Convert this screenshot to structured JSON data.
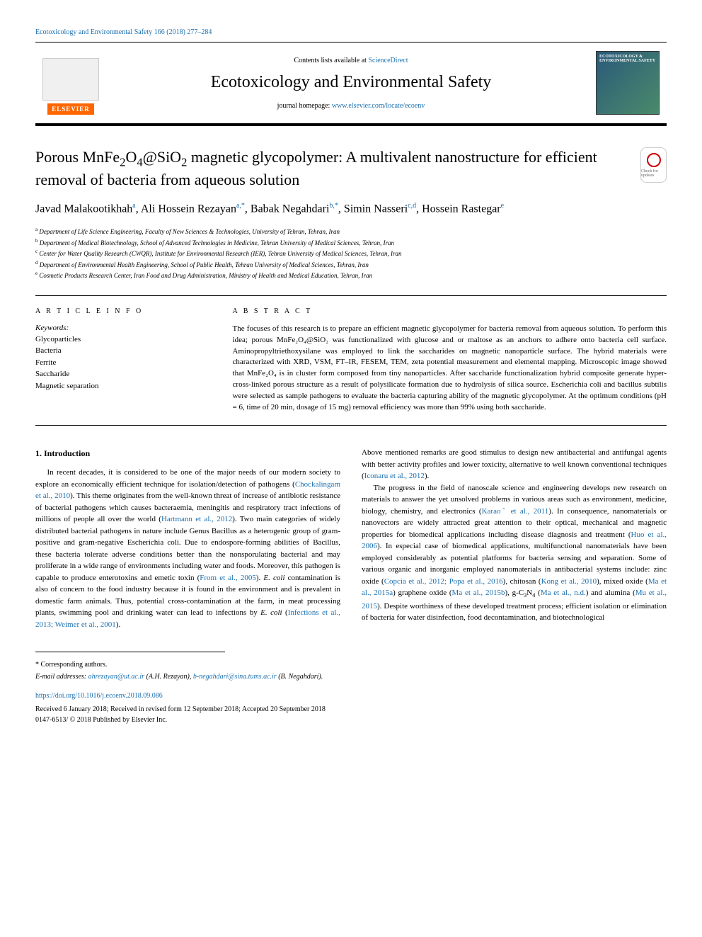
{
  "header": {
    "citation_link": "Ecotoxicology and Environmental Safety 166 (2018) 277–284",
    "contents_available": "Contents lists available at ",
    "sciencedirect": "ScienceDirect",
    "journal_title": "Ecotoxicology and Environmental Safety",
    "homepage_label": "journal homepage: ",
    "homepage_url": "www.elsevier.com/locate/ecoenv",
    "elsevier_label": "ELSEVIER",
    "cover_label": "ECOTOXICOLOGY & ENVIRONMENTAL SAFETY",
    "check_updates": "Check for updates"
  },
  "article": {
    "title_prefix": "Porous MnFe",
    "title_sub1": "2",
    "title_mid1": "O",
    "title_sub2": "4",
    "title_mid2": "@SiO",
    "title_sub3": "2",
    "title_suffix": " magnetic glycopolymer: A multivalent nanostructure for efficient removal of bacteria from aqueous solution",
    "authors": [
      {
        "name": "Javad Malakootikhah",
        "sup": "a"
      },
      {
        "name": "Ali Hossein Rezayan",
        "sup": "a,*"
      },
      {
        "name": "Babak Negahdari",
        "sup": "b,*"
      },
      {
        "name": "Simin Nasseri",
        "sup": "c,d"
      },
      {
        "name": "Hossein Rastegar",
        "sup": "e"
      }
    ],
    "affiliations": [
      {
        "sup": "a",
        "text": "Department of Life Science Engineering, Faculty of New Sciences & Technologies, University of Tehran, Tehran, Iran"
      },
      {
        "sup": "b",
        "text": "Department of Medical Biotechnology, School of Advanced Technologies in Medicine, Tehran University of Medical Sciences, Tehran, Iran"
      },
      {
        "sup": "c",
        "text": "Center for Water Quality Research (CWQR), Institute for Environmental Research (IER), Tehran University of Medical Sciences, Tehran, Iran"
      },
      {
        "sup": "d",
        "text": "Department of Environmental Health Engineering, School of Public Health, Tehran University of Medical Sciences, Tehran, Iran"
      },
      {
        "sup": "e",
        "text": "Cosmetic Products Research Center, Iran Food and Drug Administration, Ministry of Health and Medical Education, Tehran, Iran"
      }
    ]
  },
  "meta": {
    "article_info_label": "A R T I C L E  I N F O",
    "abstract_label": "A B S T R A C T",
    "keywords_label": "Keywords:",
    "keywords": [
      "Glycoparticles",
      "Bacteria",
      "Ferrite",
      "Saccharide",
      "Magnetic separation"
    ],
    "abstract_text": "The focuses of this research is to prepare an efficient magnetic glycopolymer for bacteria removal from aqueous solution. To perform this idea; porous MnFe₂O₄@SiO₂ was functionalized with glucose and or maltose as an anchors to adhere onto bacteria cell surface. Aminopropyltriethoxysilane was employed to link the saccharides on magnetic nanoparticle surface. The hybrid materials were characterized with XRD, VSM, FT–IR, FESEM, TEM, zeta potential measurement and elemental mapping. Microscopic image showed that MnFe₂O₄ is in cluster form composed from tiny nanoparticles. After saccharide functionalization hybrid composite generate hyper-cross-linked porous structure as a result of polysilicate formation due to hydrolysis of silica source. Escherichia coli and bacillus subtilis were selected as sample pathogens to evaluate the bacteria capturing ability of the magnetic glycopolymer. At the optimum conditions (pH = 6, time of 20 min, dosage of 15 mg) removal efficiency was more than 99% using both saccharide."
  },
  "body": {
    "intro_heading": "1. Introduction",
    "col1_p1_a": "In recent decades, it is considered to be one of the major needs of our modern society to explore an economically efficient technique for isolation/detection of pathogens (",
    "col1_ref1": "Chockalingam et al., 2010",
    "col1_p1_b": "). This theme originates from the well-known threat of increase of antibiotic resistance of bacterial pathogens which causes bacteraemia, meningitis and respiratory tract infections of millions of people all over the world (",
    "col1_ref2": "Hartmann et al., 2012",
    "col1_p1_c": "). Two main categories of widely distributed bacterial pathogens in nature include Genus Bacillus as a heterogenic group of gram-positive and gram-negative Escherichia coli. Due to endospore-forming abilities of Bacillus, these bacteria tolerate adverse conditions better than the nonsporulating bacterial and may proliferate in a wide range of environments including water and foods. Moreover, this pathogen is capable to produce enterotoxins and emetic toxin (",
    "col1_ref3": "From et al., 2005",
    "col1_p1_d": "). ",
    "col1_ecoli": "E. coli",
    "col1_p1_e": " contamination is also of concern to the food industry because it is found in the environment and is prevalent in domestic farm animals. Thus, potential cross-contamination at the farm, in meat processing plants, swimming pool and drinking water can lead to infections by ",
    "col1_p1_f": " (",
    "col1_ref4": "Infections et al., 2013; Weimer et al., 2001",
    "col1_p1_g": ").",
    "col2_p1_a": "Above mentioned remarks are good stimulus to design new antibacterial and antifungal agents with better activity profiles and lower toxicity, alternative to well known conventional techniques (",
    "col2_ref1": "Iconaru et al., 2012",
    "col2_p1_b": ").",
    "col2_p2_a": "The progress in the field of nanoscale science and engineering develops new research on materials to answer the yet unsolved problems in various areas such as environment, medicine, biology, chemistry, and electronics (",
    "col2_ref2": "Karaoˇ et al., 2011",
    "col2_p2_b": "). In consequence, nanomaterials or nanovectors are widely attracted great attention to their optical, mechanical and magnetic properties for biomedical applications including disease diagnosis and treatment (",
    "col2_ref3": "Huo et al., 2006",
    "col2_p2_c": "). In especial case of biomedical applications, multifunctional nanomaterials have been employed considerably as potential platforms for bacteria sensing and separation. Some of various organic and inorganic employed nanomaterials in antibacterial systems include: zinc oxide (",
    "col2_ref4": "Copcia et al., 2012; Popa et al., 2016",
    "col2_p2_d": "), chitosan (",
    "col2_ref5": "Kong et al., 2010",
    "col2_p2_e": "), mixed oxide (",
    "col2_ref6": "Ma et al., 2015a",
    "col2_p2_f": ") graphene oxide (",
    "col2_ref7": "Ma et al., 2015b",
    "col2_p2_g": "), g-C",
    "col2_sub1": "3",
    "col2_p2_h": "N",
    "col2_sub2": "4",
    "col2_p2_i": " (",
    "col2_ref8": "Ma et al., n.d.",
    "col2_p2_j": ") and alumina (",
    "col2_ref9": "Mu et al., 2015",
    "col2_p2_k": "). Despite worthiness of these developed treatment process; efficient isolation or elimination of bacteria for water disinfection, food decontamination, and biotechnological"
  },
  "footer": {
    "corresponding_note": "* Corresponding authors.",
    "email_label": "E-mail addresses: ",
    "email1": "ahrezayan@ut.ac.ir",
    "email1_name": " (A.H. Rezayan), ",
    "email2": "b-negahdari@sina.tums.ac.ir",
    "email2_name": " (B. Negahdari).",
    "doi": "https://doi.org/10.1016/j.ecoenv.2018.09.086",
    "received": "Received 6 January 2018; Received in revised form 12 September 2018; Accepted 20 September 2018",
    "copyright": "0147-6513/ © 2018 Published by Elsevier Inc."
  },
  "colors": {
    "link": "#1a6faf",
    "elsevier_orange": "#ff6600",
    "text": "#000000",
    "background": "#ffffff"
  }
}
